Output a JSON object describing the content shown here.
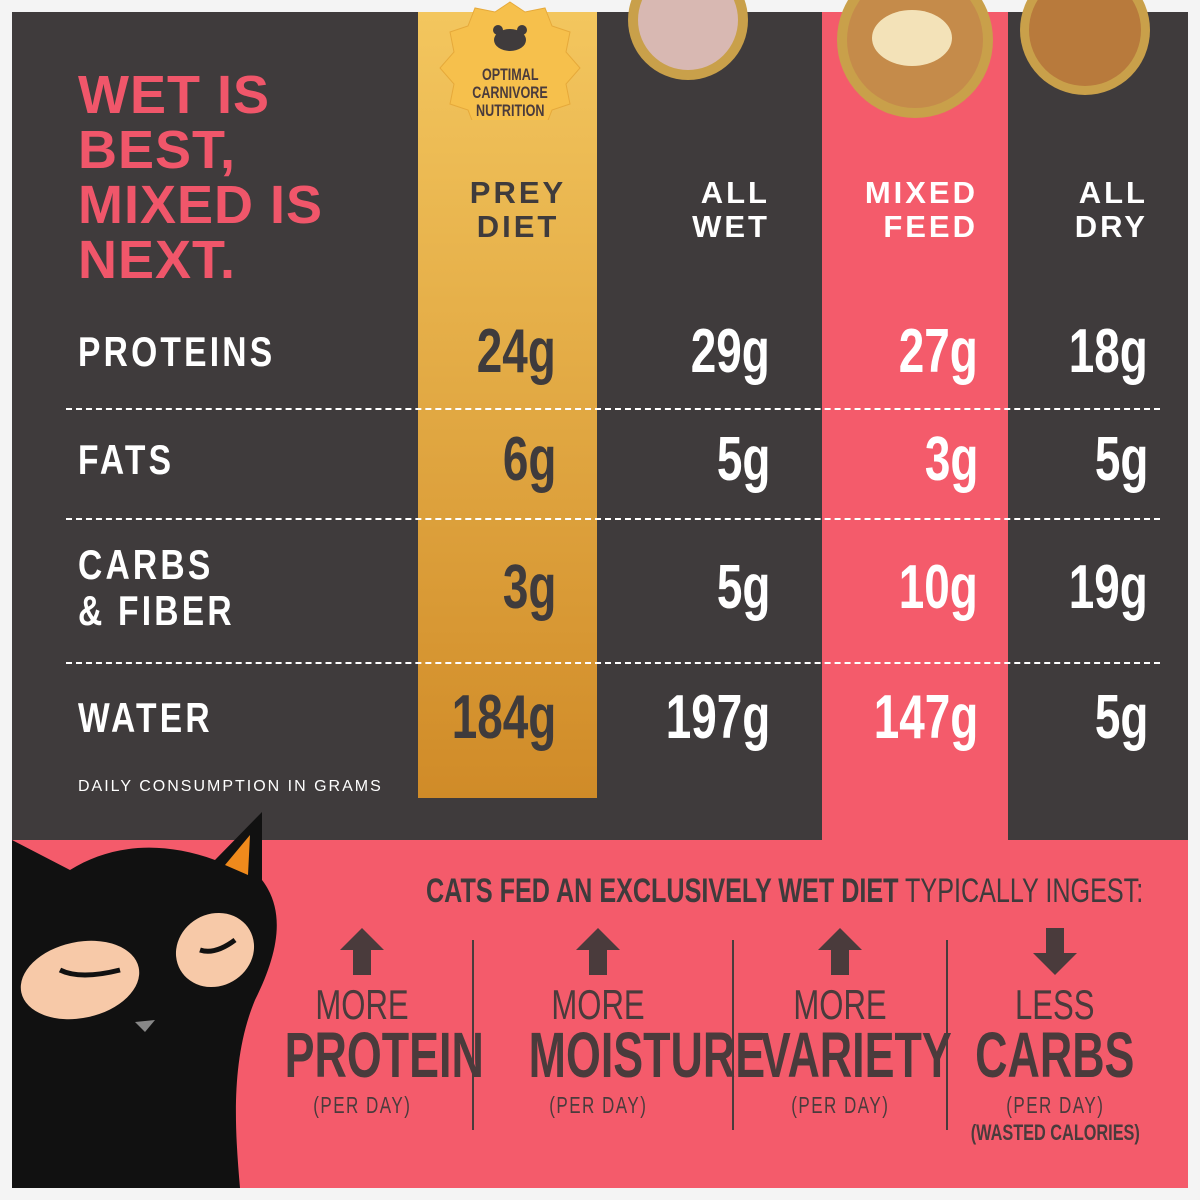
{
  "headline": [
    "WET IS",
    "BEST,",
    "MIXED IS",
    "NEXT."
  ],
  "badge": [
    "OPTIMAL",
    "CARNIVORE",
    "NUTRITION"
  ],
  "table": {
    "columns": [
      [
        "PREY",
        "DIET"
      ],
      [
        "ALL",
        "WET"
      ],
      [
        "MIXED",
        "FEED"
      ],
      [
        "ALL",
        "DRY"
      ]
    ],
    "rows": [
      {
        "label": [
          "PROTEINS"
        ],
        "cells": [
          "24g",
          "29g",
          "27g",
          "18g"
        ]
      },
      {
        "label": [
          "FATS"
        ],
        "cells": [
          "6g",
          "5g",
          "3g",
          "5g"
        ]
      },
      {
        "label": [
          "CARBS",
          "& FIBER"
        ],
        "cells": [
          "3g",
          "5g",
          "10g",
          "19g"
        ]
      },
      {
        "label": [
          "WATER"
        ],
        "cells": [
          "184g",
          "197g",
          "147g",
          "5g"
        ]
      }
    ],
    "footnote": "DAILY CONSUMPTION IN GRAMS"
  },
  "callout": {
    "heading_bold": "CATS FED AN EXCLUSIVELY WET DIET",
    "heading_rest": "TYPICALLY INGEST:",
    "items": [
      {
        "top": "MORE",
        "main": "PROTEIN",
        "sub": [
          "(PER DAY)"
        ]
      },
      {
        "top": "MORE",
        "main": "MOISTURE",
        "sub": [
          "(PER DAY)"
        ]
      },
      {
        "top": "MORE",
        "main": "VARIETY",
        "sub": [
          "(PER DAY)"
        ]
      },
      {
        "top": "LESS",
        "main": "CARBS",
        "sub": [
          "(PER DAY)",
          "(WASTED CALORIES)"
        ]
      }
    ]
  }
}
